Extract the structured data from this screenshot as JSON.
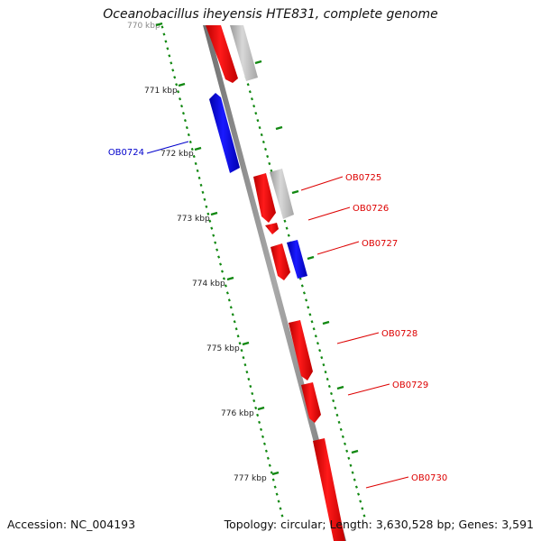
{
  "title": "Oceanobacillus iheyensis HTE831, complete genome",
  "footer": {
    "accession": "Accession: NC_004193",
    "stats": "Topology: circular; Length: 3,630,528 bp; Genes: 3,591"
  },
  "ticks": [
    "770 kbp",
    "771 kbp",
    "772 kbp",
    "773 kbp",
    "774 kbp",
    "775 kbp",
    "776 kbp",
    "777 kbp"
  ],
  "genes": [
    {
      "label": "OB0724",
      "color": "#0000cc",
      "strand": "reverse"
    },
    {
      "label": "OB0725",
      "color": "#dd0000",
      "strand": "forward"
    },
    {
      "label": "OB0726",
      "color": "#dd0000",
      "strand": "forward"
    },
    {
      "label": "OB0727",
      "color": "#dd0000",
      "strand": "forward"
    },
    {
      "label": "OB0728",
      "color": "#dd0000",
      "strand": "forward"
    },
    {
      "label": "OB0729",
      "color": "#dd0000",
      "strand": "forward"
    },
    {
      "label": "OB0730",
      "color": "#dd0000",
      "strand": "forward"
    }
  ],
  "colors": {
    "forward_gene": "#ff0000",
    "reverse_gene": "#0000ee",
    "other_feature": "#bbbbbb",
    "backbone": "#888888",
    "tick": "#118811",
    "label_forward": "#dd0000",
    "label_reverse": "#0000cc"
  }
}
